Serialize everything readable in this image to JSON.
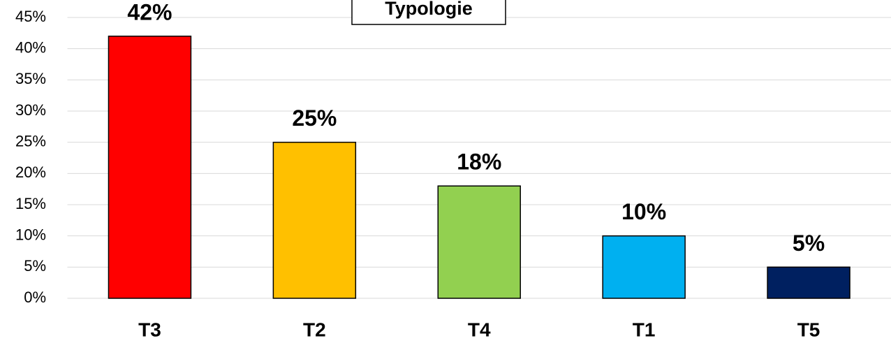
{
  "chart_data": {
    "type": "bar",
    "title": "Typologie",
    "categories": [
      "T3",
      "T2",
      "T4",
      "T1",
      "T5"
    ],
    "values": [
      42,
      25,
      18,
      10,
      5
    ],
    "value_labels": [
      "42%",
      "25%",
      "18%",
      "10%",
      "5%"
    ],
    "colors": [
      "#ff0000",
      "#ffc000",
      "#92d050",
      "#00b0f0",
      "#002060"
    ],
    "ylim": [
      0,
      45
    ],
    "yticks": [
      {
        "value": 0,
        "label": "0%"
      },
      {
        "value": 5,
        "label": "5%"
      },
      {
        "value": 10,
        "label": "10%"
      },
      {
        "value": 15,
        "label": "15%"
      },
      {
        "value": 20,
        "label": "20%"
      },
      {
        "value": 25,
        "label": "25%"
      },
      {
        "value": 30,
        "label": "30%"
      },
      {
        "value": 35,
        "label": "35%"
      },
      {
        "value": 40,
        "label": "40%"
      },
      {
        "value": 45,
        "label": "45%"
      }
    ],
    "grid": true
  }
}
